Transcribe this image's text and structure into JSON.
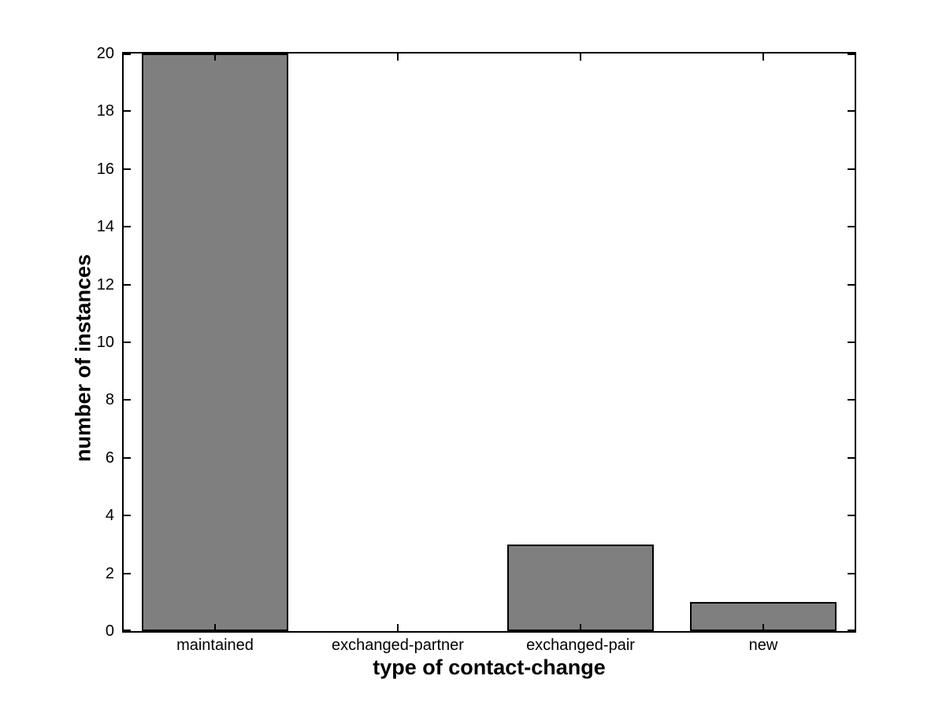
{
  "figure": {
    "background": "#ffffff"
  },
  "chart_data": {
    "type": "bar",
    "title": "",
    "categories": [
      "maintained",
      "exchanged-partner",
      "exchanged-pair",
      "new"
    ],
    "values": [
      20,
      0,
      3,
      1
    ],
    "xlabel": "type of contact-change",
    "ylabel": "number of instances",
    "ylim": [
      0,
      20
    ],
    "yticks": [
      0,
      2,
      4,
      6,
      8,
      10,
      12,
      14,
      16,
      18,
      20
    ],
    "ytick_labels": [
      "0",
      "2",
      "4",
      "6",
      "8",
      "10",
      "12",
      "14",
      "16",
      "18",
      "20"
    ],
    "bar_color": "#7f7f7f",
    "bar_edge_color": "#000000",
    "axis_color": "#000000",
    "background_color": "#ffffff",
    "bar_width_fraction": 0.8,
    "tick_direction": "in",
    "grid": false,
    "legend": null
  }
}
